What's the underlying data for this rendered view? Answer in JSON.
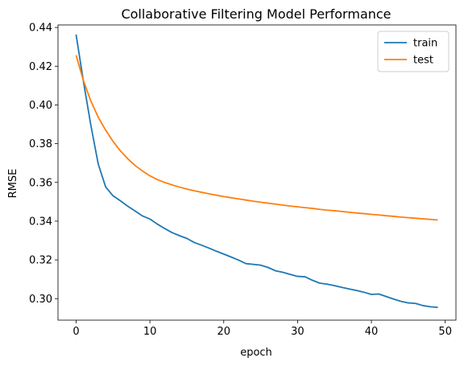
{
  "chart_data": {
    "type": "line",
    "title": "Collaborative Filtering Model Performance",
    "xlabel": "epoch",
    "ylabel": "RMSE",
    "xlim": [
      -2.45,
      51.45
    ],
    "ylim": [
      0.2889,
      0.4413
    ],
    "xticks": [
      "0",
      "10",
      "20",
      "30",
      "40",
      "50"
    ],
    "yticks": [
      "0.30",
      "0.32",
      "0.34",
      "0.36",
      "0.38",
      "0.40",
      "0.42",
      "0.44"
    ],
    "grid": false,
    "legend": "top-right",
    "x": [
      0,
      1,
      2,
      3,
      4,
      5,
      6,
      7,
      8,
      9,
      10,
      11,
      12,
      13,
      14,
      15,
      16,
      17,
      18,
      19,
      20,
      21,
      22,
      23,
      24,
      25,
      26,
      27,
      28,
      29,
      30,
      31,
      32,
      33,
      34,
      35,
      36,
      37,
      38,
      39,
      40,
      41,
      42,
      43,
      44,
      45,
      46,
      47,
      48,
      49
    ],
    "series": [
      {
        "name": "train",
        "color": "#1f77b4",
        "values": [
          0.4363,
          0.412,
          0.3895,
          0.3695,
          0.3577,
          0.3531,
          0.3505,
          0.3477,
          0.3452,
          0.3427,
          0.3411,
          0.3385,
          0.3362,
          0.3341,
          0.3325,
          0.3311,
          0.329,
          0.3276,
          0.3261,
          0.3245,
          0.323,
          0.3215,
          0.3199,
          0.3181,
          0.3177,
          0.3173,
          0.3161,
          0.3144,
          0.3136,
          0.3125,
          0.3115,
          0.3113,
          0.3095,
          0.308,
          0.3075,
          0.3067,
          0.3058,
          0.305,
          0.3042,
          0.3033,
          0.3022,
          0.3024,
          0.3011,
          0.2998,
          0.2986,
          0.2978,
          0.2975,
          0.2964,
          0.2958,
          0.2955
        ]
      },
      {
        "name": "test",
        "color": "#ff7f0e",
        "values": [
          0.4257,
          0.4125,
          0.402,
          0.3937,
          0.387,
          0.3812,
          0.3763,
          0.3722,
          0.3687,
          0.3659,
          0.3634,
          0.3615,
          0.36,
          0.3587,
          0.3576,
          0.3566,
          0.3557,
          0.3549,
          0.3541,
          0.3534,
          0.3527,
          0.3521,
          0.3515,
          0.3509,
          0.3503,
          0.3498,
          0.3493,
          0.3488,
          0.3483,
          0.3478,
          0.3474,
          0.347,
          0.3466,
          0.3461,
          0.3457,
          0.3454,
          0.345,
          0.3446,
          0.3442,
          0.3439,
          0.3435,
          0.3432,
          0.3428,
          0.3425,
          0.3421,
          0.3418,
          0.3415,
          0.3412,
          0.3409,
          0.3406
        ]
      }
    ]
  }
}
